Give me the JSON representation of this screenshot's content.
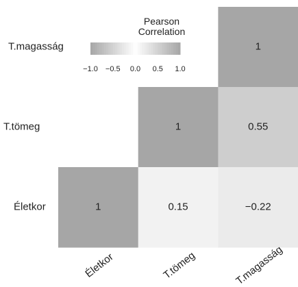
{
  "chart_data": {
    "type": "heatmap",
    "legend_title": "Pearson Correlation",
    "x_categories": [
      "Életkor",
      "T.tömeg",
      "T.magasság"
    ],
    "y_categories": [
      "T.magasság",
      "T.tömeg",
      "Életkor"
    ],
    "values": [
      [
        null,
        null,
        1
      ],
      [
        null,
        1,
        0.55
      ],
      [
        1,
        0.15,
        -0.22
      ]
    ],
    "value_labels": [
      [
        null,
        null,
        "1"
      ],
      [
        null,
        "1",
        "0.55"
      ],
      [
        "1",
        "0.15",
        "−0.22"
      ]
    ],
    "colorbar_lim": [
      -1,
      1
    ],
    "colorbar_ticks": [
      {
        "value": -1,
        "label": "−1.0"
      },
      {
        "value": -0.5,
        "label": "−0.5"
      },
      {
        "value": 0,
        "label": "0.0"
      },
      {
        "value": 0.5,
        "label": "0.5"
      },
      {
        "value": 1,
        "label": "1.0"
      }
    ],
    "color_low": "#ffffff",
    "color_high": "#a6a6a6"
  }
}
